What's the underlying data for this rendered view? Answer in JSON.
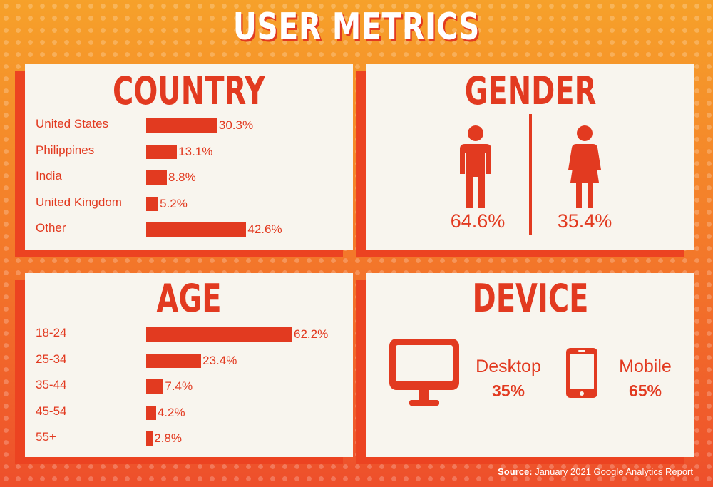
{
  "title": "USER METRICS",
  "colors": {
    "accent": "#e23a20",
    "panel": "#f8f5ee",
    "background": "#f7952a"
  },
  "source_label": "Source:",
  "source_text": "January 2021 Google Analytics Report",
  "chart_data": [
    {
      "type": "bar",
      "orientation": "horizontal",
      "title": "COUNTRY",
      "categories": [
        "United States",
        "Philippines",
        "India",
        "United Kingdom",
        "Other"
      ],
      "values": [
        30.3,
        13.1,
        8.8,
        5.2,
        42.6
      ],
      "value_labels": [
        "30.3%",
        "13.1%",
        "8.8%",
        "5.2%",
        "42.6%"
      ]
    },
    {
      "type": "pictogram",
      "title": "GENDER",
      "categories": [
        "male-icon",
        "female-icon"
      ],
      "values": [
        64.6,
        35.4
      ],
      "value_labels": [
        "64.6%",
        "35.4%"
      ]
    },
    {
      "type": "bar",
      "orientation": "horizontal",
      "title": "AGE",
      "categories": [
        "18-24",
        "25-34",
        "35-44",
        "45-54",
        "55+"
      ],
      "values": [
        62.2,
        23.4,
        7.4,
        4.2,
        2.8
      ],
      "value_labels": [
        "62.2%",
        "23.4%",
        "7.4%",
        "4.2%",
        "2.8%"
      ]
    },
    {
      "type": "pictogram",
      "title": "DEVICE",
      "categories": [
        "Desktop",
        "Mobile"
      ],
      "values": [
        35,
        65
      ],
      "value_labels": [
        "35%",
        "65%"
      ]
    }
  ]
}
